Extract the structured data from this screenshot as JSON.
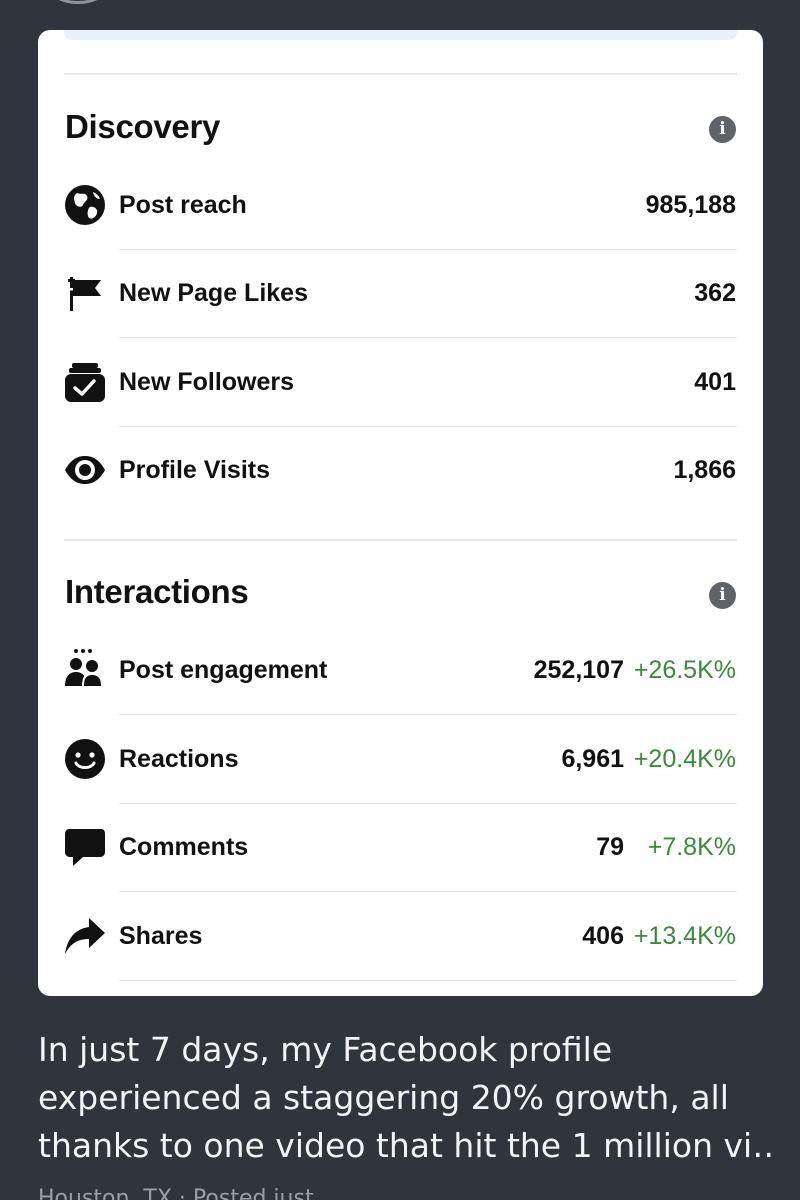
{
  "discovery": {
    "title": "Discovery",
    "info_icon": "info-icon",
    "rows": [
      {
        "icon": "globe-icon",
        "label": "Post reach",
        "value": "985,188"
      },
      {
        "icon": "flag-icon",
        "label": "New Page Likes",
        "value": "362"
      },
      {
        "icon": "follow-box-icon",
        "label": "New Followers",
        "value": "401"
      },
      {
        "icon": "eye-icon",
        "label": "Profile Visits",
        "value": "1,866"
      }
    ]
  },
  "interactions": {
    "title": "Interactions",
    "info_icon": "info-icon",
    "rows": [
      {
        "icon": "people-icon",
        "label": "Post engagement",
        "value": "252,107",
        "delta": "+26.5K%"
      },
      {
        "icon": "smiley-icon",
        "label": "Reactions",
        "value": "6,961",
        "delta": "+20.4K%"
      },
      {
        "icon": "comment-bubble-icon",
        "label": "Comments",
        "value": "79",
        "delta": "+7.8K%"
      },
      {
        "icon": "share-arrow-icon",
        "label": "Shares",
        "value": "406",
        "delta": "+13.4K%"
      }
    ]
  },
  "caption": {
    "lines": [
      "In just 7 days, my Facebook profile",
      "experienced a staggering 20% growth, all",
      "thanks to one video that hit the 1 million vi…"
    ]
  },
  "location_text": "Houston, TX · Posted just",
  "colors": {
    "background": "#2f343d",
    "card": "#ffffff",
    "positive_delta": "#3a8a3a",
    "info_icon": "#5f6368"
  }
}
